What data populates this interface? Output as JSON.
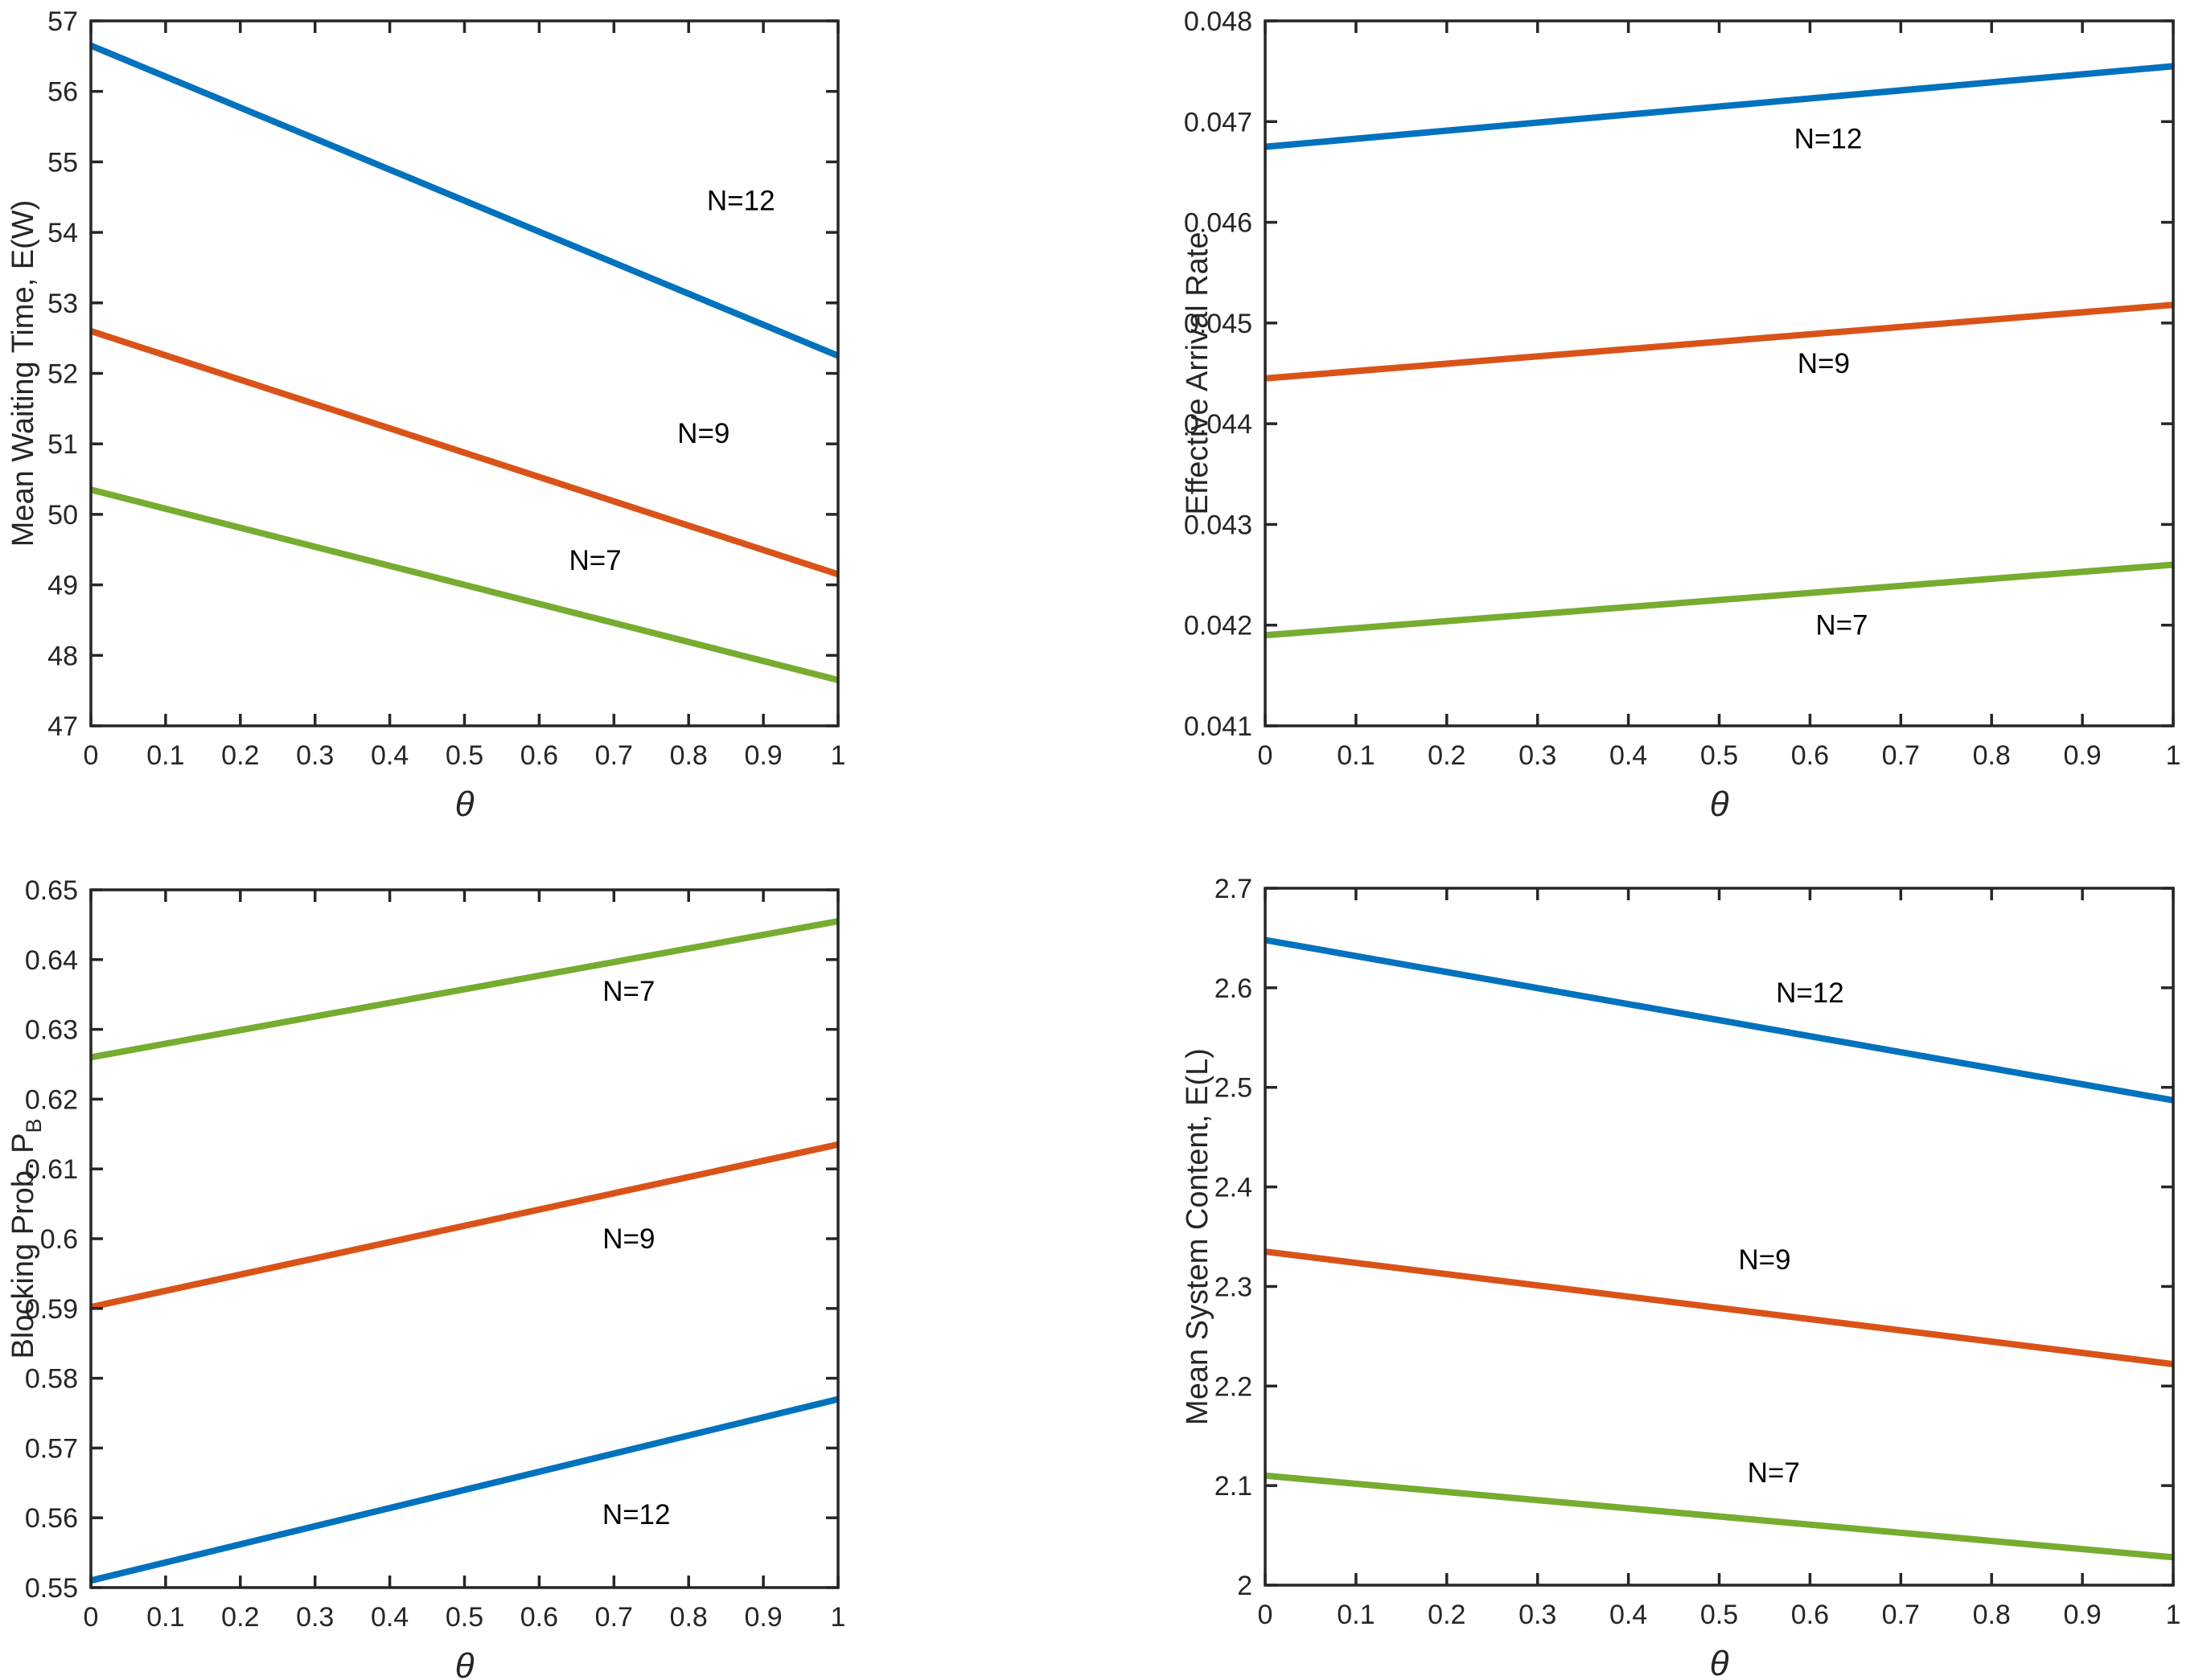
{
  "figure": {
    "background": "#ffffff",
    "frame_color": "#262626",
    "tick_text_color": "#262626",
    "annotation_color": "#000000",
    "x_axis_symbol": "θ"
  },
  "chart_data": [
    {
      "id": "mean-waiting-time",
      "type": "line",
      "title": "",
      "xlabel": "θ",
      "ylabel": "Mean Waiting Time, E(W)",
      "xlim": [
        0,
        1
      ],
      "ylim": [
        47,
        57
      ],
      "grid": false,
      "legend_position": "none",
      "xticks": {
        "values": [
          0,
          0.1,
          0.2,
          0.3,
          0.4,
          0.5,
          0.6,
          0.7,
          0.8,
          0.9,
          1
        ],
        "labels": [
          "0",
          "0.1",
          "0.2",
          "0.3",
          "0.4",
          "0.5",
          "0.6",
          "0.7",
          "0.8",
          "0.9",
          "1"
        ]
      },
      "yticks": {
        "values": [
          47,
          48,
          49,
          50,
          51,
          52,
          53,
          54,
          55,
          56,
          57
        ],
        "labels": [
          "47",
          "48",
          "49",
          "50",
          "51",
          "52",
          "53",
          "54",
          "55",
          "56",
          "57"
        ]
      },
      "series": [
        {
          "name": "N=12",
          "color": "#0072BD",
          "x": [
            0,
            1
          ],
          "y": [
            56.65,
            52.25
          ]
        },
        {
          "name": "N=9",
          "color": "#D95319",
          "x": [
            0,
            1
          ],
          "y": [
            52.6,
            49.15
          ]
        },
        {
          "name": "N=7",
          "color": "#77AC30",
          "x": [
            0,
            1
          ],
          "y": [
            50.35,
            47.65
          ]
        }
      ],
      "annotations": [
        {
          "text": "N=12",
          "x": 0.87,
          "y": 54.45
        },
        {
          "text": "N=9",
          "x": 0.82,
          "y": 51.15
        },
        {
          "text": "N=7",
          "x": 0.675,
          "y": 49.35
        }
      ]
    },
    {
      "id": "effective-arrival-rate",
      "type": "line",
      "title": "",
      "xlabel": "θ",
      "ylabel": "Effective Arrival Rate",
      "xlim": [
        0,
        1
      ],
      "ylim": [
        0.041,
        0.048
      ],
      "grid": false,
      "legend_position": "none",
      "xticks": {
        "values": [
          0,
          0.1,
          0.2,
          0.3,
          0.4,
          0.5,
          0.6,
          0.7,
          0.8,
          0.9,
          1
        ],
        "labels": [
          "0",
          "0.1",
          "0.2",
          "0.3",
          "0.4",
          "0.5",
          "0.6",
          "0.7",
          "0.8",
          "0.9",
          "1"
        ]
      },
      "yticks": {
        "values": [
          0.041,
          0.042,
          0.043,
          0.044,
          0.045,
          0.046,
          0.047,
          0.048
        ],
        "labels": [
          "0.041",
          "0.042",
          "0.043",
          "0.044",
          "0.045",
          "0.046",
          "0.047",
          "0.048"
        ]
      },
      "series": [
        {
          "name": "N=12",
          "color": "#0072BD",
          "x": [
            0,
            1
          ],
          "y": [
            0.04675,
            0.04755
          ]
        },
        {
          "name": "N=9",
          "color": "#D95319",
          "x": [
            0,
            1
          ],
          "y": [
            0.04445,
            0.04518
          ]
        },
        {
          "name": "N=7",
          "color": "#77AC30",
          "x": [
            0,
            1
          ],
          "y": [
            0.0419,
            0.0426
          ]
        }
      ],
      "annotations": [
        {
          "text": "N=12",
          "x": 0.62,
          "y": 0.04683
        },
        {
          "text": "N=9",
          "x": 0.615,
          "y": 0.0446
        },
        {
          "text": "N=7",
          "x": 0.635,
          "y": 0.042
        }
      ]
    },
    {
      "id": "blocking-probability",
      "type": "line",
      "title": "",
      "xlabel": "θ",
      "ylabel": "Blocking Prob. P_B",
      "xlim": [
        0,
        1
      ],
      "ylim": [
        0.55,
        0.65
      ],
      "grid": false,
      "legend_position": "none",
      "xticks": {
        "values": [
          0,
          0.1,
          0.2,
          0.3,
          0.4,
          0.5,
          0.6,
          0.7,
          0.8,
          0.9,
          1
        ],
        "labels": [
          "0",
          "0.1",
          "0.2",
          "0.3",
          "0.4",
          "0.5",
          "0.6",
          "0.7",
          "0.8",
          "0.9",
          "1"
        ]
      },
      "yticks": {
        "values": [
          0.55,
          0.56,
          0.57,
          0.58,
          0.59,
          0.6,
          0.61,
          0.62,
          0.63,
          0.64,
          0.65
        ],
        "labels": [
          "0.55",
          "0.56",
          "0.57",
          "0.58",
          "0.59",
          "0.6",
          "0.61",
          "0.62",
          "0.63",
          "0.64",
          "0.65"
        ]
      },
      "series": [
        {
          "name": "N=7",
          "color": "#77AC30",
          "x": [
            0,
            1
          ],
          "y": [
            0.626,
            0.6455
          ]
        },
        {
          "name": "N=9",
          "color": "#D95319",
          "x": [
            0,
            1
          ],
          "y": [
            0.5902,
            0.6135
          ]
        },
        {
          "name": "N=12",
          "color": "#0072BD",
          "x": [
            0,
            1
          ],
          "y": [
            0.551,
            0.577
          ]
        }
      ],
      "annotations": [
        {
          "text": "N=7",
          "x": 0.72,
          "y": 0.6355
        },
        {
          "text": "N=9",
          "x": 0.72,
          "y": 0.6
        },
        {
          "text": "N=12",
          "x": 0.73,
          "y": 0.5605
        }
      ]
    },
    {
      "id": "mean-system-content",
      "type": "line",
      "title": "",
      "xlabel": "θ",
      "ylabel": "Mean System Content, E(L)",
      "xlim": [
        0,
        1
      ],
      "ylim": [
        2,
        2.7
      ],
      "grid": false,
      "legend_position": "none",
      "xticks": {
        "values": [
          0,
          0.1,
          0.2,
          0.3,
          0.4,
          0.5,
          0.6,
          0.7,
          0.8,
          0.9,
          1
        ],
        "labels": [
          "0",
          "0.1",
          "0.2",
          "0.3",
          "0.4",
          "0.5",
          "0.6",
          "0.7",
          "0.8",
          "0.9",
          "1"
        ]
      },
      "yticks": {
        "values": [
          2,
          2.1,
          2.2,
          2.3,
          2.4,
          2.5,
          2.6,
          2.7
        ],
        "labels": [
          "2",
          "2.1",
          "2.2",
          "2.3",
          "2.4",
          "2.5",
          "2.6",
          "2.7"
        ]
      },
      "series": [
        {
          "name": "N=12",
          "color": "#0072BD",
          "x": [
            0,
            1
          ],
          "y": [
            2.648,
            2.487
          ]
        },
        {
          "name": "N=9",
          "color": "#D95319",
          "x": [
            0,
            1
          ],
          "y": [
            2.335,
            2.222
          ]
        },
        {
          "name": "N=7",
          "color": "#77AC30",
          "x": [
            0,
            1
          ],
          "y": [
            2.11,
            2.028
          ]
        }
      ],
      "annotations": [
        {
          "text": "N=12",
          "x": 0.6,
          "y": 2.595
        },
        {
          "text": "N=9",
          "x": 0.55,
          "y": 2.327
        },
        {
          "text": "N=7",
          "x": 0.56,
          "y": 2.113
        }
      ]
    }
  ]
}
